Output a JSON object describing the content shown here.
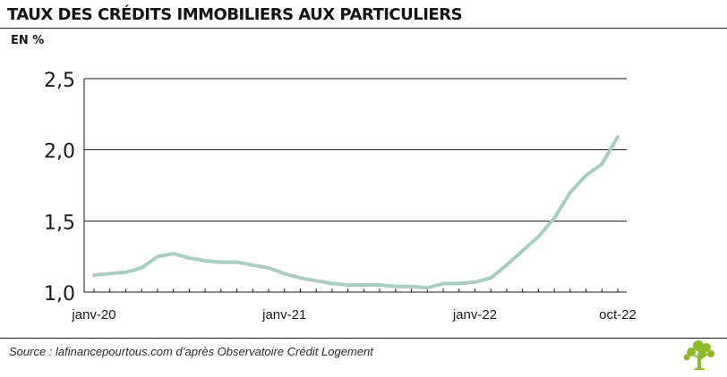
{
  "header": {
    "title": "TAUX DES CRÉDITS IMMOBILIERS AUX PARTICULIERS",
    "unit": "EN %"
  },
  "footer": {
    "source": "Source : lafinancepourtous.com d’après Observatoire Crédit Logement"
  },
  "logo_icon": "tree-logo-icon",
  "colors": {
    "line": "#a8cfbe",
    "logo": "#8dbb2b",
    "axis": "#1a1a1a"
  },
  "chart_data": {
    "type": "line",
    "title": "TAUX DES CRÉDITS IMMOBILIERS AUX PARTICULIERS",
    "ylabel": "EN %",
    "xlabel": "",
    "ylim": [
      1.0,
      2.5
    ],
    "yticks": [
      1.0,
      1.5,
      2.0,
      2.5
    ],
    "ytick_labels": [
      "1,0",
      "1,5",
      "2,0",
      "2,5"
    ],
    "x_tick_labels": [
      {
        "index": 0,
        "label": "janv-20"
      },
      {
        "index": 12,
        "label": "janv-21"
      },
      {
        "index": 24,
        "label": "janv-22"
      },
      {
        "index": 33,
        "label": "oct-22"
      }
    ],
    "x": [
      "2020-01",
      "2020-02",
      "2020-03",
      "2020-04",
      "2020-05",
      "2020-06",
      "2020-07",
      "2020-08",
      "2020-09",
      "2020-10",
      "2020-11",
      "2020-12",
      "2021-01",
      "2021-02",
      "2021-03",
      "2021-04",
      "2021-05",
      "2021-06",
      "2021-07",
      "2021-08",
      "2021-09",
      "2021-10",
      "2021-11",
      "2021-12",
      "2022-01",
      "2022-02",
      "2022-03",
      "2022-04",
      "2022-05",
      "2022-06",
      "2022-07",
      "2022-08",
      "2022-09",
      "2022-10"
    ],
    "values": [
      1.12,
      1.13,
      1.14,
      1.17,
      1.25,
      1.27,
      1.24,
      1.22,
      1.21,
      1.21,
      1.19,
      1.17,
      1.13,
      1.1,
      1.08,
      1.06,
      1.05,
      1.05,
      1.05,
      1.04,
      1.04,
      1.03,
      1.06,
      1.06,
      1.07,
      1.1,
      1.19,
      1.29,
      1.39,
      1.52,
      1.7,
      1.82,
      1.9,
      2.09
    ],
    "grid": true,
    "legend": "none"
  }
}
